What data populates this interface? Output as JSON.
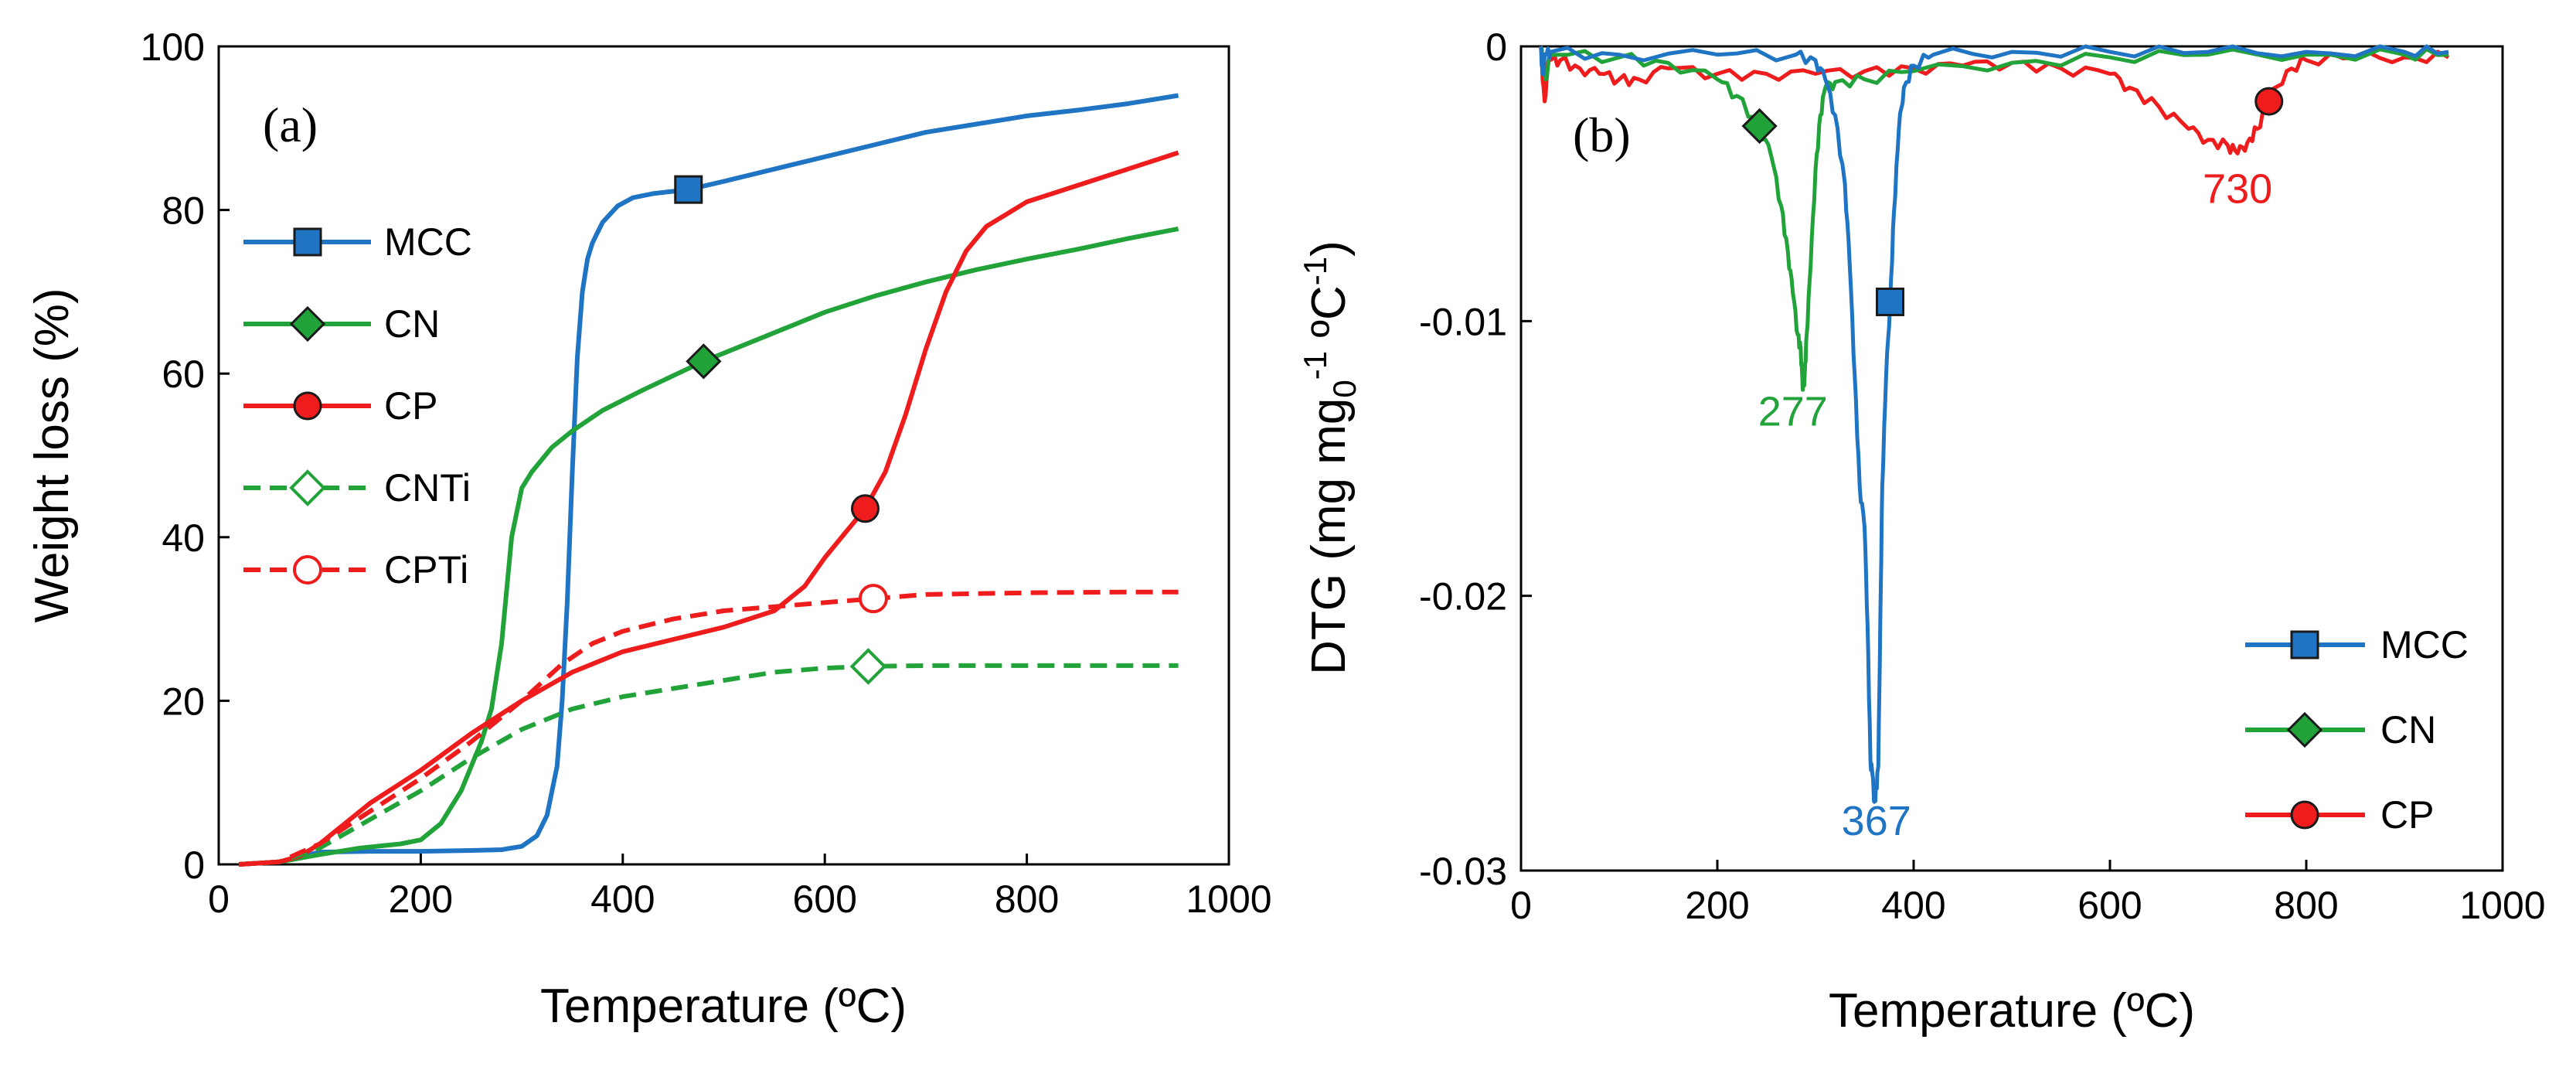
{
  "colors": {
    "MCC": "#1f74c4",
    "CN": "#22a33a",
    "CP": "#ee1c1c",
    "CNTi": "#22a33a",
    "CPTi": "#ee1c1c"
  },
  "chart_data": [
    {
      "id": "a",
      "type": "line",
      "panel_label": "(a)",
      "xlabel": "Temperature (ºC)",
      "ylabel": "Weight loss (%)",
      "xlim": [
        0,
        1000
      ],
      "ylim": [
        0,
        100
      ],
      "xticks": [
        0,
        200,
        400,
        600,
        800,
        1000
      ],
      "yticks": [
        0,
        20,
        40,
        60,
        80,
        100
      ],
      "xtick_labels": [
        "0",
        "200",
        "400",
        "600",
        "800",
        "1000"
      ],
      "ytick_labels": [
        "0",
        "20",
        "40",
        "60",
        "80",
        "100"
      ],
      "legend_position": "left",
      "series": [
        {
          "name": "MCC",
          "color_key": "MCC",
          "dash": false,
          "marker": "square",
          "marker_filled": true,
          "marker_at": [
            465,
            82.5
          ],
          "x": [
            20,
            60,
            100,
            150,
            200,
            250,
            280,
            300,
            315,
            325,
            335,
            340,
            345,
            350,
            355,
            360,
            365,
            370,
            380,
            395,
            410,
            430,
            465,
            500,
            550,
            600,
            650,
            700,
            750,
            800,
            850,
            900,
            950
          ],
          "y": [
            0,
            0.3,
            1.5,
            1.6,
            1.6,
            1.7,
            1.8,
            2.2,
            3.5,
            6,
            12,
            20,
            32,
            48,
            62,
            70,
            74,
            76,
            78.5,
            80.5,
            81.5,
            82,
            82.5,
            83.5,
            85,
            86.5,
            88,
            89.5,
            90.5,
            91.5,
            92.2,
            93,
            94
          ]
        },
        {
          "name": "CN",
          "color_key": "CN",
          "dash": false,
          "marker": "diamond",
          "marker_filled": true,
          "marker_at": [
            480,
            61.5
          ],
          "x": [
            20,
            60,
            100,
            140,
            180,
            200,
            220,
            240,
            260,
            270,
            280,
            290,
            300,
            310,
            330,
            350,
            380,
            420,
            480,
            550,
            600,
            650,
            700,
            750,
            800,
            850,
            900,
            950
          ],
          "y": [
            0,
            0.3,
            1.2,
            2,
            2.5,
            3,
            5,
            9,
            15,
            19,
            27,
            40,
            46,
            48,
            51,
            53,
            55.5,
            58,
            61.5,
            65,
            67.5,
            69.5,
            71.2,
            72.7,
            74,
            75.2,
            76.5,
            77.7
          ]
        },
        {
          "name": "CP",
          "color_key": "CP",
          "dash": false,
          "marker": "circle",
          "marker_filled": true,
          "marker_at": [
            640,
            43.5
          ],
          "x": [
            20,
            60,
            80,
            100,
            150,
            200,
            250,
            300,
            350,
            400,
            450,
            500,
            550,
            580,
            600,
            620,
            640,
            660,
            680,
            700,
            720,
            740,
            760,
            780,
            800,
            850,
            900,
            950
          ],
          "y": [
            0,
            0.3,
            1,
            2.5,
            7.5,
            11.5,
            16,
            20,
            23.5,
            26,
            27.5,
            29,
            31,
            34,
            37.5,
            40.5,
            43.5,
            48,
            55,
            63,
            70,
            75,
            78,
            79.5,
            81,
            83,
            85,
            87
          ]
        },
        {
          "name": "CNTi",
          "color_key": "CNTi",
          "dash": true,
          "marker": "diamond",
          "marker_filled": false,
          "marker_at": [
            643,
            24.2
          ],
          "x": [
            20,
            60,
            100,
            150,
            200,
            250,
            300,
            350,
            400,
            450,
            500,
            550,
            600,
            640,
            700,
            800,
            900,
            950
          ],
          "y": [
            0,
            0.3,
            2,
            5.5,
            9,
            13,
            16.5,
            19,
            20.5,
            21.5,
            22.5,
            23.5,
            24,
            24.2,
            24.3,
            24.3,
            24.3,
            24.3
          ]
        },
        {
          "name": "CPTi",
          "color_key": "CPTi",
          "dash": true,
          "marker": "circle",
          "marker_filled": false,
          "marker_at": [
            648,
            32.5
          ],
          "x": [
            20,
            60,
            100,
            150,
            200,
            250,
            300,
            340,
            370,
            400,
            450,
            500,
            550,
            600,
            650,
            700,
            800,
            900,
            950
          ],
          "y": [
            0,
            0.3,
            2.5,
            6.5,
            10.5,
            15,
            20,
            24.5,
            27,
            28.5,
            30,
            31,
            31.5,
            32,
            32.5,
            33,
            33.2,
            33.3,
            33.3
          ]
        }
      ]
    },
    {
      "id": "b",
      "type": "line",
      "panel_label": "(b)",
      "xlabel": "Temperature (ºC)",
      "ylabel_main": "DTG (mg mg",
      "ylabel_sub": "0",
      "ylabel_sup1": "-1",
      "ylabel_mid": " ºC",
      "ylabel_sup2": "-1",
      "ylabel_end": ")",
      "xlim": [
        0,
        1000
      ],
      "ylim": [
        -0.03,
        0
      ],
      "xticks": [
        0,
        200,
        400,
        600,
        800,
        1000
      ],
      "yticks": [
        0,
        -0.01,
        -0.02,
        -0.03
      ],
      "xtick_labels": [
        "0",
        "200",
        "400",
        "600",
        "800",
        "1000"
      ],
      "ytick_labels": [
        "0",
        "-0.01",
        "-0.02",
        "-0.03"
      ],
      "legend_position": "bottom-right",
      "annotations": [
        {
          "text": "277",
          "x": 277,
          "y": -0.0138,
          "color_key": "CN"
        },
        {
          "text": "367",
          "x": 362,
          "y": -0.0287,
          "color_key": "MCC"
        },
        {
          "text": "730",
          "x": 730,
          "y": -0.0057,
          "color_key": "CP"
        }
      ],
      "series": [
        {
          "name": "MCC",
          "color_key": "MCC",
          "marker": "square",
          "marker_at": [
            376,
            -0.0093
          ],
          "x": [
            20,
            22,
            25,
            30,
            100,
            200,
            280,
            300,
            310,
            320,
            330,
            335,
            340,
            345,
            350,
            353,
            356,
            358,
            360,
            362,
            364,
            366,
            368,
            372,
            376,
            380,
            385,
            390,
            400,
            420,
            500,
            600,
            700,
            800,
            900,
            945
          ],
          "y": [
            0,
            -0.001,
            -0.0003,
            -0.0002,
            -0.0003,
            -0.0003,
            -0.0003,
            -0.0005,
            -0.0012,
            -0.0025,
            -0.005,
            -0.008,
            -0.012,
            -0.016,
            -0.0175,
            -0.021,
            -0.026,
            -0.0265,
            -0.0275,
            -0.027,
            -0.0262,
            -0.021,
            -0.016,
            -0.012,
            -0.0093,
            -0.006,
            -0.003,
            -0.0015,
            -0.0007,
            -0.0003,
            -0.0002,
            -0.0002,
            -0.0002,
            -0.0002,
            -0.0002,
            -0.0002
          ]
        },
        {
          "name": "CN",
          "color_key": "CN",
          "marker": "diamond",
          "marker_at": [
            243,
            -0.0029
          ],
          "x": [
            20,
            25,
            30,
            100,
            150,
            200,
            220,
            243,
            255,
            265,
            272,
            277,
            282,
            285,
            287,
            289,
            291,
            295,
            300,
            305,
            310,
            320,
            350,
            400,
            500,
            600,
            700,
            800,
            900,
            945
          ],
          "y": [
            0,
            -0.0012,
            -0.0003,
            -0.0004,
            -0.0006,
            -0.0012,
            -0.0018,
            -0.0029,
            -0.004,
            -0.0058,
            -0.0075,
            -0.009,
            -0.0105,
            -0.011,
            -0.0125,
            -0.012,
            -0.0105,
            -0.008,
            -0.0045,
            -0.0025,
            -0.0015,
            -0.0013,
            -0.0012,
            -0.0009,
            -0.0006,
            -0.0004,
            -0.0003,
            -0.0003,
            -0.0003,
            -0.0003
          ]
        },
        {
          "name": "CP",
          "color_key": "CP",
          "marker": "circle",
          "marker_at": [
            762,
            -0.002
          ],
          "x": [
            20,
            24,
            28,
            40,
            60,
            80,
            100,
            120,
            150,
            200,
            250,
            300,
            350,
            400,
            450,
            500,
            550,
            600,
            620,
            650,
            680,
            700,
            720,
            730,
            740,
            750,
            762,
            780,
            800,
            850,
            900,
            945
          ],
          "y": [
            0,
            -0.002,
            -0.0005,
            -0.0005,
            -0.0008,
            -0.001,
            -0.0012,
            -0.0012,
            -0.0008,
            -0.001,
            -0.001,
            -0.001,
            -0.0009,
            -0.0008,
            -0.0007,
            -0.0006,
            -0.0008,
            -0.001,
            -0.0015,
            -0.0022,
            -0.003,
            -0.0034,
            -0.0036,
            -0.0039,
            -0.0035,
            -0.003,
            -0.002,
            -0.0009,
            -0.0005,
            -0.0004,
            -0.0004,
            -0.0004
          ]
        }
      ]
    }
  ]
}
